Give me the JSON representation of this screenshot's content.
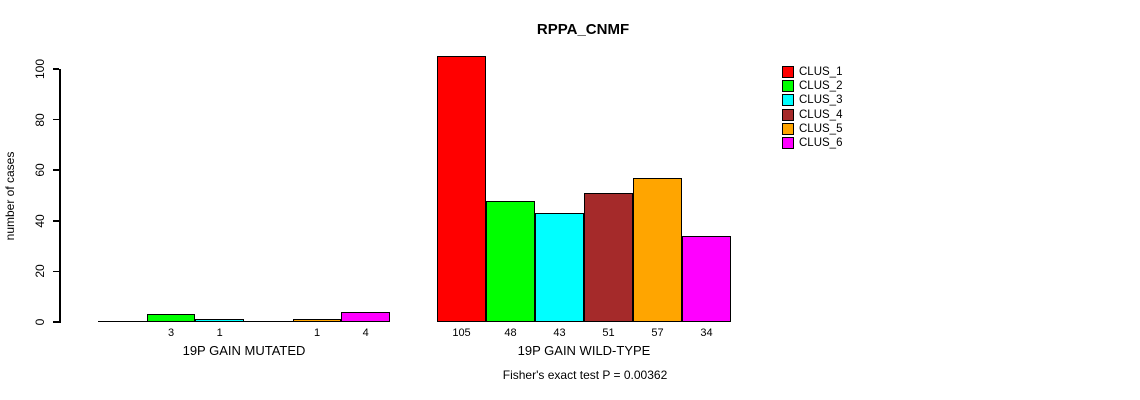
{
  "chart_data": {
    "type": "bar",
    "title": "RPPA_CNMF",
    "ylabel": "number of cases",
    "xlabel": "",
    "annotation": "Fisher's exact test P = 0.00362",
    "categories": [
      "19P GAIN MUTATED",
      "19P GAIN WILD-TYPE"
    ],
    "series": [
      {
        "name": "CLUS_1",
        "color": "#ff0000",
        "values": [
          0,
          105
        ]
      },
      {
        "name": "CLUS_2",
        "color": "#00ff00",
        "values": [
          3,
          48
        ]
      },
      {
        "name": "CLUS_3",
        "color": "#00ffff",
        "values": [
          1,
          43
        ]
      },
      {
        "name": "CLUS_4",
        "color": "#a52a2a",
        "values": [
          0,
          51
        ]
      },
      {
        "name": "CLUS_5",
        "color": "#ffa500",
        "values": [
          1,
          57
        ]
      },
      {
        "name": "CLUS_6",
        "color": "#ff00ff",
        "values": [
          4,
          34
        ]
      }
    ],
    "bar_labels": [
      [
        "",
        "3",
        "1",
        "",
        "1",
        "4"
      ],
      [
        "105",
        "48",
        "43",
        "51",
        "57",
        "34"
      ]
    ],
    "yticks": [
      0,
      20,
      40,
      60,
      80,
      100
    ],
    "ylim": [
      0,
      105
    ],
    "grid": false,
    "legend_position": "right",
    "legend_entries": [
      "CLUS_1",
      "CLUS_2",
      "CLUS_3",
      "CLUS_4",
      "CLUS_5",
      "CLUS_6"
    ]
  }
}
